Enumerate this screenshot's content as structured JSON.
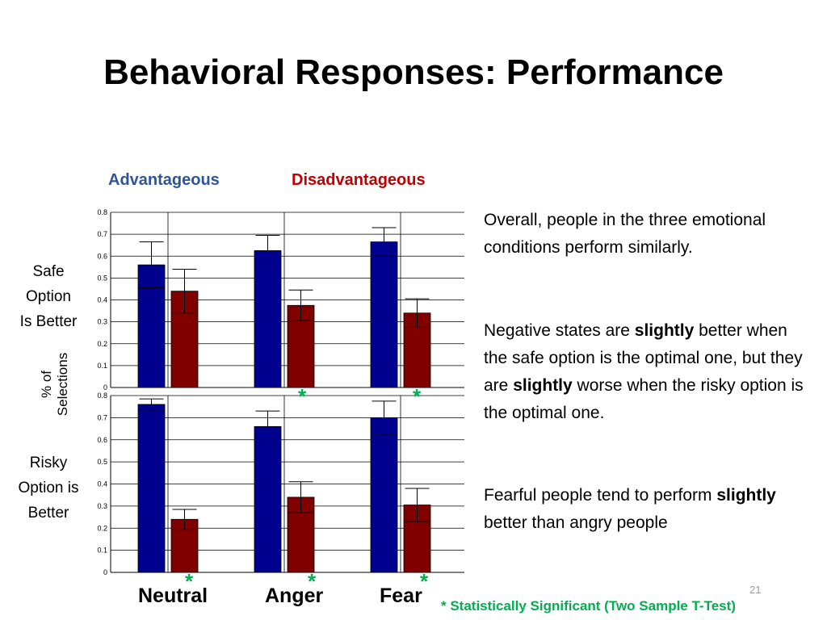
{
  "slide": {
    "title": "Behavioral Responses: Performance",
    "page_number": "21"
  },
  "legend": {
    "advantageous": "Advantageous",
    "disadvantageous": "Disadvantageous",
    "advantageous_color": "#2F5597",
    "disadvantageous_color": "#C00000"
  },
  "labels": {
    "top_row": [
      "Safe",
      "Option",
      "Is Better"
    ],
    "bottom_row": [
      "Risky",
      "Option is",
      "Better"
    ],
    "y_axis": [
      "% of",
      "Selections"
    ],
    "categories": [
      "Neutral",
      "Anger",
      "Fear"
    ],
    "significance_note": "* Statistically Significant (Two Sample T-Test)",
    "star": "*",
    "star_color": "#00B050"
  },
  "text": {
    "p1": "Overall, people in the three emotional conditions perform similarly.",
    "p2_a": "Negative states are ",
    "p2_b": "slightly",
    "p2_c": " better when the safe option is the optimal one, but they are ",
    "p2_d": "slightly",
    "p2_e": " worse when the risky option is the optimal one.",
    "p3_a": "Fearful people tend to perform ",
    "p3_b": "slightly",
    "p3_c": " better than angry people"
  },
  "chart_data": [
    {
      "type": "bar",
      "panel": "Safe Option Is Better",
      "categories": [
        "Neutral",
        "Anger",
        "Fear"
      ],
      "ylim": [
        0,
        0.8
      ],
      "yticks": [
        "0",
        "0.1",
        "0.2",
        "0.3",
        "0.4",
        "0.5",
        "0.6",
        "0.7",
        "0.8"
      ],
      "grid": true,
      "series": [
        {
          "name": "Advantageous",
          "color": "#00008F",
          "values": [
            0.56,
            0.625,
            0.665
          ],
          "error": [
            0.105,
            0.07,
            0.065
          ]
        },
        {
          "name": "Disadvantageous",
          "color": "#800000",
          "values": [
            0.44,
            0.375,
            0.34
          ],
          "error": [
            0.1,
            0.07,
            0.065
          ]
        }
      ],
      "significant": [
        "Anger",
        "Fear"
      ]
    },
    {
      "type": "bar",
      "panel": "Risky Option is Better",
      "categories": [
        "Neutral",
        "Anger",
        "Fear"
      ],
      "ylim": [
        0,
        0.8
      ],
      "yticks": [
        "0",
        "0.1",
        "0.2",
        "0.3",
        "0.4",
        "0.5",
        "0.6",
        "0.7",
        "0.8"
      ],
      "grid": true,
      "series": [
        {
          "name": "Advantageous",
          "color": "#00008F",
          "values": [
            0.76,
            0.66,
            0.7
          ],
          "error": [
            0.025,
            0.07,
            0.075
          ]
        },
        {
          "name": "Disadvantageous",
          "color": "#800000",
          "values": [
            0.24,
            0.34,
            0.305
          ],
          "error": [
            0.045,
            0.07,
            0.075
          ]
        }
      ],
      "significant": [
        "Neutral",
        "Anger",
        "Fear"
      ]
    }
  ]
}
